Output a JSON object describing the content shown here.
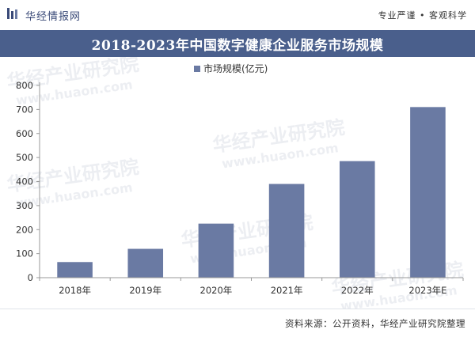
{
  "header": {
    "brand": "华经情报网",
    "tagline": "专业严谨 • 客观科学"
  },
  "title": "2018-2023年中国数字健康企业服务市场规模",
  "watermark": {
    "text": "华经产业研究院",
    "url": "www.huaon.com"
  },
  "source": "资料来源：公开资料，华经产业研究院整理",
  "colors": {
    "bar": "#6a7aa3",
    "title_band": "#4a5f8c",
    "brand_icon": "#3a4a78"
  },
  "chart_data": {
    "type": "bar",
    "categories": [
      "2018年",
      "2019年",
      "2020年",
      "2021年",
      "2022年",
      "2023年E"
    ],
    "series": [
      {
        "name": "市场规模(亿元)",
        "values": [
          65,
          120,
          225,
          390,
          485,
          710
        ]
      }
    ],
    "ylim": [
      0,
      800
    ],
    "yticks": [
      0,
      100,
      200,
      300,
      400,
      500,
      600,
      700,
      800
    ],
    "legend_position": "top-center",
    "grid": false
  }
}
